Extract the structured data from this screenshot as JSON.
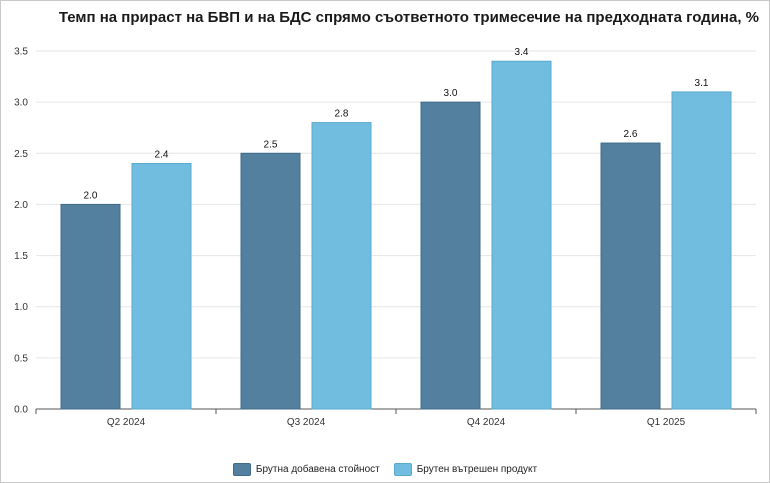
{
  "chart_data": {
    "type": "bar",
    "title": "Темп на прираст на БВП и на БДС спрямо съответното тримесечие на предходната година, %",
    "categories": [
      "Q2 2024",
      "Q3 2024",
      "Q4 2024",
      "Q1 2025"
    ],
    "series": [
      {
        "name": "Брутна добавена стойност",
        "values": [
          2.0,
          2.5,
          3.0,
          2.6
        ],
        "value_labels": [
          "2.0",
          "2.5",
          "3.0",
          "2.6"
        ],
        "color": "#53809f"
      },
      {
        "name": "Брутен вътрешен продукт",
        "values": [
          2.4,
          2.8,
          3.4,
          3.1
        ],
        "value_labels": [
          "2.4",
          "2.8",
          "3.4",
          "3.1"
        ],
        "color": "#71bde0"
      }
    ],
    "ylim": [
      0,
      3.5
    ],
    "yticks": [
      "0.0",
      "0.5",
      "1.0",
      "1.5",
      "2.0",
      "2.5",
      "3.0",
      "3.5"
    ],
    "grid": true,
    "legend": "bottom"
  }
}
